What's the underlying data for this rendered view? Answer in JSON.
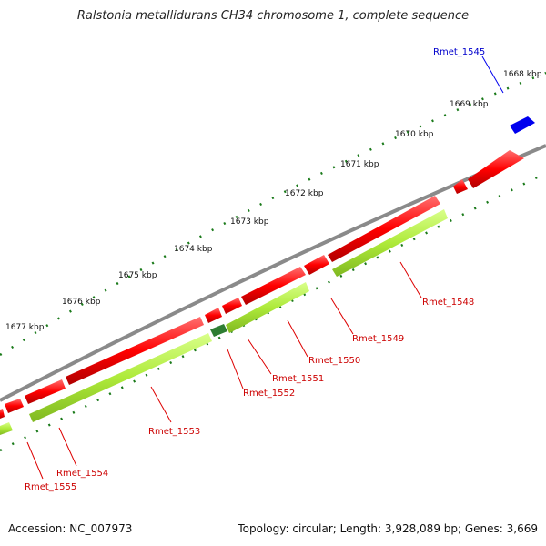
{
  "title": "Ralstonia metallidurans CH34 chromosome 1, complete sequence",
  "footer": {
    "accession": "Accession: NC_007973",
    "summary": "Topology: circular; Length: 3,928,089 bp; Genes: 3,669"
  },
  "colors": {
    "backbone": "#8a8a8a",
    "forward_gene": "#ff0000",
    "reverse_gene": "#aeea3a",
    "highlight_gene": "#0000ee",
    "small_gene": "#2e7d32",
    "tick": "#1a7a1a",
    "label_forward": "#cc0000",
    "label_highlight": "#0000cc"
  },
  "kbp_labels": [
    "1668 kbp",
    "1669 kbp",
    "1670 kbp",
    "1671 kbp",
    "1672 kbp",
    "1673 kbp",
    "1674 kbp",
    "1675 kbp",
    "1676 kbp",
    "1677 kbp"
  ],
  "gene_labels": [
    {
      "text": "Rmet_1545",
      "color": "blue"
    },
    {
      "text": "Rmet_1548",
      "color": "red"
    },
    {
      "text": "Rmet_1549",
      "color": "red"
    },
    {
      "text": "Rmet_1550",
      "color": "red"
    },
    {
      "text": "Rmet_1551",
      "color": "red"
    },
    {
      "text": "Rmet_1552",
      "color": "red"
    },
    {
      "text": "Rmet_1553",
      "color": "red"
    },
    {
      "text": "Rmet_1554",
      "color": "red"
    },
    {
      "text": "Rmet_1555",
      "color": "red"
    }
  ]
}
